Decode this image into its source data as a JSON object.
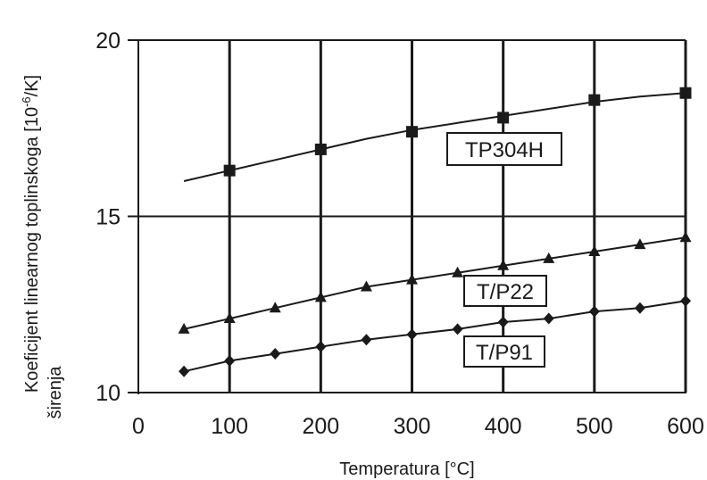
{
  "chart_data": {
    "type": "line",
    "title": "",
    "xlabel": "Temperatura [°C]",
    "ylabel_line1": "Koeficijent linearnog toplinskoga  [10",
    "ylabel_exponent": "-6",
    "ylabel_unit": "/K]",
    "ylabel_line2": "širenja",
    "xlim": [
      0,
      600
    ],
    "ylim": [
      10,
      20
    ],
    "x_ticks": [
      0,
      100,
      200,
      300,
      400,
      500,
      600
    ],
    "y_ticks": [
      10,
      15,
      20
    ],
    "x_tick_labels": [
      "0",
      "100",
      "200",
      "300",
      "400",
      "500",
      "600"
    ],
    "y_tick_labels": [
      "10",
      "15",
      "20"
    ],
    "grid": true,
    "series": [
      {
        "name": "TP304H",
        "marker": "square",
        "curve": {
          "x": [
            50,
            100,
            150,
            200,
            250,
            300,
            350,
            400,
            450,
            500,
            550,
            600
          ],
          "y": [
            16.0,
            16.3,
            16.6,
            16.9,
            17.2,
            17.45,
            17.65,
            17.85,
            18.05,
            18.25,
            18.4,
            18.5
          ]
        },
        "points": {
          "x": [
            100,
            200,
            300,
            400,
            500,
            600
          ],
          "y": [
            16.3,
            16.9,
            17.4,
            17.8,
            18.3,
            18.5
          ]
        }
      },
      {
        "name": "T/P22",
        "marker": "triangle",
        "points": {
          "x": [
            50,
            100,
            150,
            200,
            250,
            300,
            350,
            400,
            450,
            500,
            550,
            600
          ],
          "y": [
            11.8,
            12.1,
            12.4,
            12.7,
            13.0,
            13.2,
            13.4,
            13.6,
            13.8,
            14.0,
            14.2,
            14.4
          ]
        }
      },
      {
        "name": "T/P91",
        "marker": "diamond",
        "points": {
          "x": [
            50,
            100,
            150,
            200,
            250,
            300,
            350,
            400,
            450,
            500,
            550,
            600
          ],
          "y": [
            10.6,
            10.9,
            11.1,
            11.3,
            11.5,
            11.65,
            11.8,
            12.0,
            12.1,
            12.3,
            12.4,
            12.6
          ]
        }
      }
    ],
    "annotations": [
      {
        "text": "TP304H",
        "series": 0
      },
      {
        "text": "T/P22",
        "series": 1
      },
      {
        "text": "T/P91",
        "series": 2
      }
    ]
  }
}
